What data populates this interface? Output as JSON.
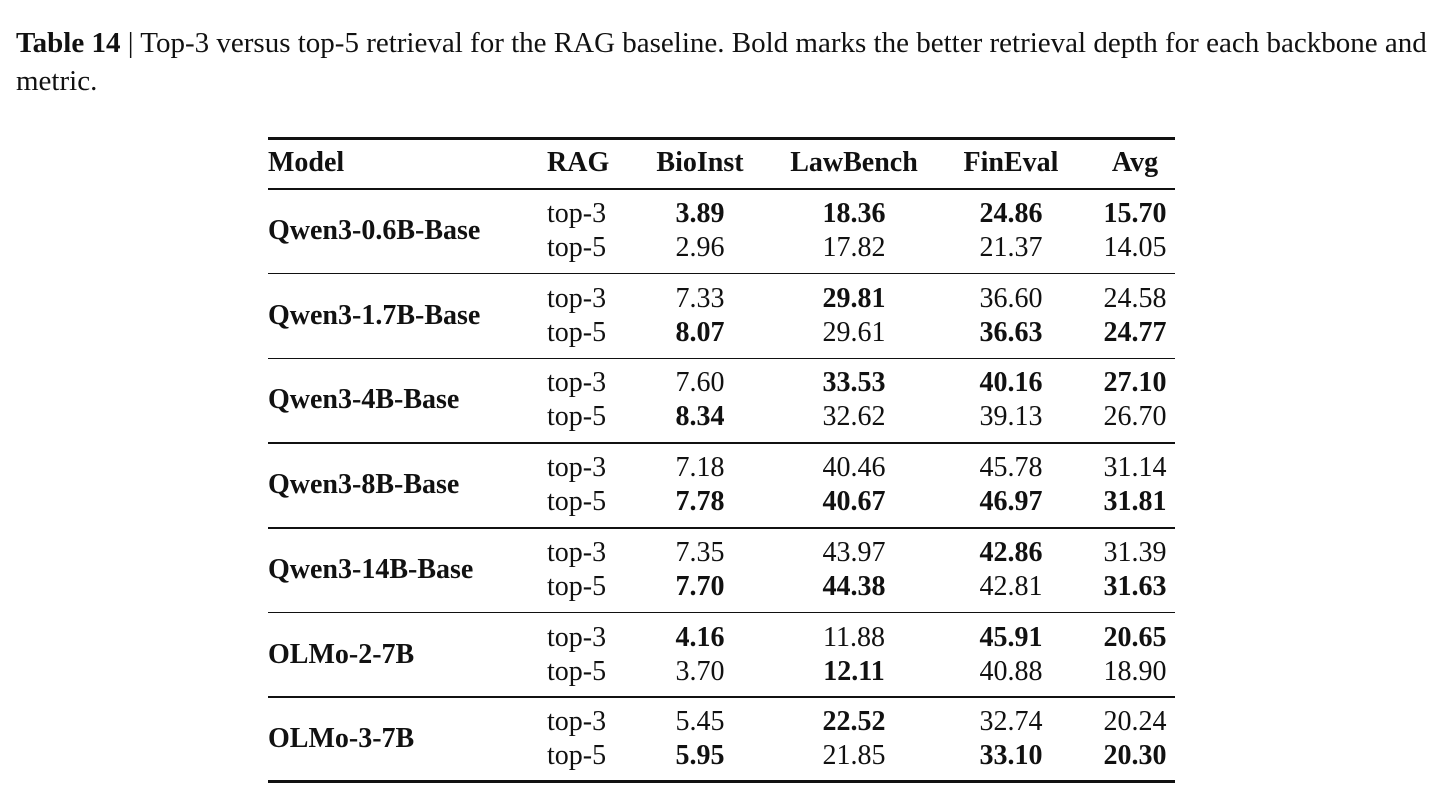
{
  "caption": {
    "label": "Table 14",
    "text": "| Top-3 versus top-5 retrieval for the RAG baseline. Bold marks the better retrieval depth for each backbone and metric."
  },
  "table": {
    "header": [
      "Model",
      "RAG",
      "BioInst",
      "LawBench",
      "FinEval",
      "Avg"
    ],
    "groups": [
      {
        "model": "Qwen3-0.6B-Base",
        "rows": [
          {
            "rag": "top-3",
            "values": [
              "3.89",
              "18.36",
              "24.86",
              "15.70"
            ],
            "bold": [
              true,
              true,
              true,
              true
            ]
          },
          {
            "rag": "top-5",
            "values": [
              "2.96",
              "17.82",
              "21.37",
              "14.05"
            ],
            "bold": [
              false,
              false,
              false,
              false
            ]
          }
        ]
      },
      {
        "model": "Qwen3-1.7B-Base",
        "rows": [
          {
            "rag": "top-3",
            "values": [
              "7.33",
              "29.81",
              "36.60",
              "24.58"
            ],
            "bold": [
              false,
              true,
              false,
              false
            ]
          },
          {
            "rag": "top-5",
            "values": [
              "8.07",
              "29.61",
              "36.63",
              "24.77"
            ],
            "bold": [
              true,
              false,
              true,
              true
            ]
          }
        ]
      },
      {
        "model": "Qwen3-4B-Base",
        "rows": [
          {
            "rag": "top-3",
            "values": [
              "7.60",
              "33.53",
              "40.16",
              "27.10"
            ],
            "bold": [
              false,
              true,
              true,
              true
            ]
          },
          {
            "rag": "top-5",
            "values": [
              "8.34",
              "32.62",
              "39.13",
              "26.70"
            ],
            "bold": [
              true,
              false,
              false,
              false
            ]
          }
        ]
      },
      {
        "model": "Qwen3-8B-Base",
        "rows": [
          {
            "rag": "top-3",
            "values": [
              "7.18",
              "40.46",
              "45.78",
              "31.14"
            ],
            "bold": [
              false,
              false,
              false,
              false
            ]
          },
          {
            "rag": "top-5",
            "values": [
              "7.78",
              "40.67",
              "46.97",
              "31.81"
            ],
            "bold": [
              true,
              true,
              true,
              true
            ]
          }
        ]
      },
      {
        "model": "Qwen3-14B-Base",
        "rows": [
          {
            "rag": "top-3",
            "values": [
              "7.35",
              "43.97",
              "42.86",
              "31.39"
            ],
            "bold": [
              false,
              false,
              true,
              false
            ]
          },
          {
            "rag": "top-5",
            "values": [
              "7.70",
              "44.38",
              "42.81",
              "31.63"
            ],
            "bold": [
              true,
              true,
              false,
              true
            ]
          }
        ]
      },
      {
        "model": "OLMo-2-7B",
        "rows": [
          {
            "rag": "top-3",
            "values": [
              "4.16",
              "11.88",
              "45.91",
              "20.65"
            ],
            "bold": [
              true,
              false,
              true,
              true
            ]
          },
          {
            "rag": "top-5",
            "values": [
              "3.70",
              "12.11",
              "40.88",
              "18.90"
            ],
            "bold": [
              false,
              true,
              false,
              false
            ]
          }
        ]
      },
      {
        "model": "OLMo-3-7B",
        "rows": [
          {
            "rag": "top-3",
            "values": [
              "5.45",
              "22.52",
              "32.74",
              "20.24"
            ],
            "bold": [
              false,
              true,
              false,
              false
            ]
          },
          {
            "rag": "top-5",
            "values": [
              "5.95",
              "21.85",
              "33.10",
              "20.30"
            ],
            "bold": [
              true,
              false,
              true,
              true
            ]
          }
        ]
      }
    ]
  }
}
